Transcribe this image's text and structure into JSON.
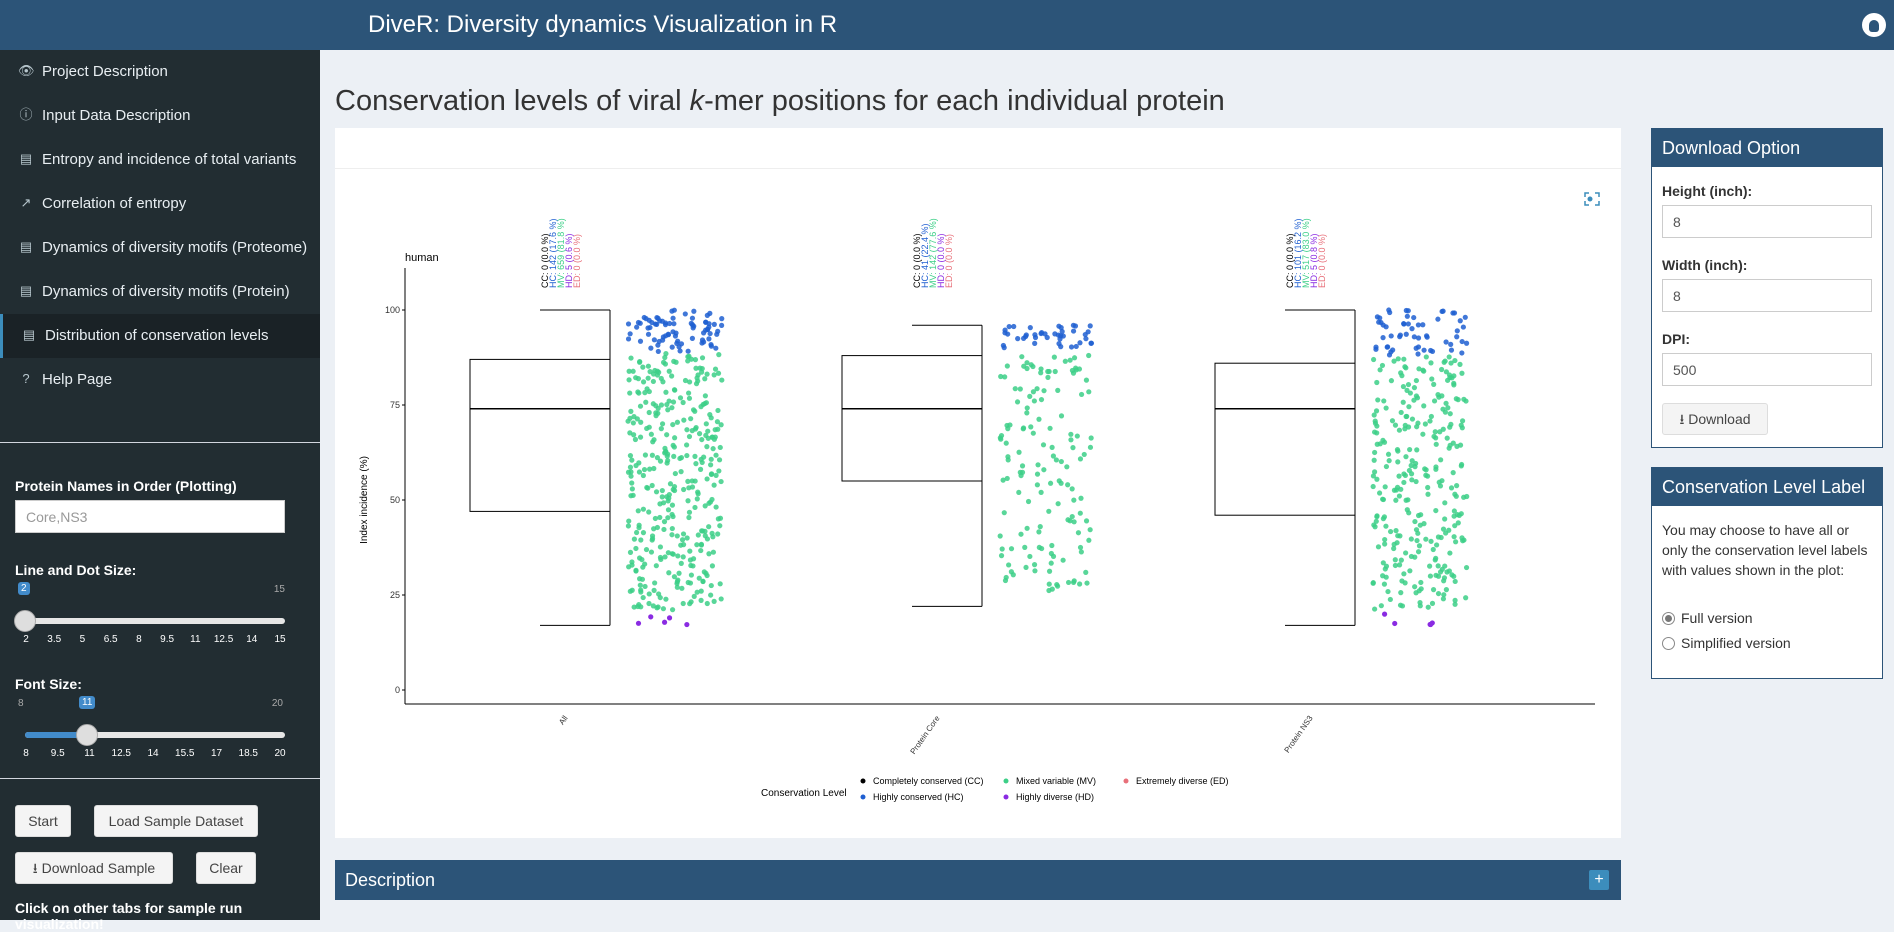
{
  "app": {
    "title": "DiveR: Diversity dynamics Visualization in R"
  },
  "sidebar": {
    "items": [
      {
        "label": "Project Description",
        "icon": "eye-icon"
      },
      {
        "label": "Input Data Description",
        "icon": "info-icon"
      },
      {
        "label": "Entropy and incidence of total variants",
        "icon": "bar-chart-icon"
      },
      {
        "label": "Correlation of entropy",
        "icon": "line-chart-icon"
      },
      {
        "label": "Dynamics of diversity motifs (Proteome)",
        "icon": "bar-chart-icon"
      },
      {
        "label": "Dynamics of diversity motifs (Protein)",
        "icon": "bar-chart-icon"
      },
      {
        "label": "Distribution of conservation levels",
        "icon": "bar-chart-icon",
        "active": true
      },
      {
        "label": "Help Page",
        "icon": "question-icon"
      }
    ],
    "protein_label": "Protein Names in Order (Plotting)",
    "protein_placeholder": "Core,NS3",
    "line_dot": {
      "label": "Line and Dot Size:",
      "value": "2",
      "min": "2",
      "max": "15",
      "ticks": [
        "2",
        "3.5",
        "5",
        "6.5",
        "8",
        "9.5",
        "11",
        "12.5",
        "14",
        "15"
      ]
    },
    "font_size": {
      "label": "Font Size:",
      "value": "11",
      "min": "8",
      "max": "20",
      "ticks": [
        "8",
        "9.5",
        "11",
        "12.5",
        "14",
        "15.5",
        "17",
        "18.5",
        "20"
      ]
    },
    "start_label": "Start",
    "load_label": "Load Sample Dataset",
    "download_sample_label": "Download Sample",
    "clear_label": "Clear",
    "note": "Click on other tabs for sample run visualization!"
  },
  "main": {
    "title_pre": "Conservation levels of viral ",
    "title_em": "k",
    "title_post": "-mer positions for each individual protein",
    "description_label": "Description",
    "plus": "+"
  },
  "chart_data": {
    "type": "box-jitter",
    "host_label": "human",
    "ylabel": "Index incidence (%)",
    "ylim": [
      0,
      100
    ],
    "yticks": [
      "0",
      "25",
      "50",
      "75",
      "100"
    ],
    "categories": [
      "All",
      "Protein Core",
      "Protein NS3"
    ],
    "boxes": [
      {
        "min": 17,
        "q1": 47,
        "median": 74,
        "q3": 87,
        "max": 100
      },
      {
        "min": 22,
        "q1": 55,
        "median": 74,
        "q3": 88,
        "max": 96
      },
      {
        "min": 17,
        "q1": 46,
        "median": 74,
        "q3": 86,
        "max": 100
      }
    ],
    "annotations": [
      [
        "CC: 0 (0.0 %)",
        "HC: 142 (17.6 %)",
        "MV: 659 (81.8 %)",
        "HD: 5 (0.6 %)",
        "ED: 0 (0.0 %)"
      ],
      [
        "CC: 0 (0.0 %)",
        "HC: 41 (22.4 %)",
        "MV: 142 (77.6 %)",
        "HD: 0 (0.0 %)",
        "ED: 0 (0.0 %)"
      ],
      [
        "CC: 0 (0.0 %)",
        "HC: 101 (16.2 %)",
        "MV: 517 (83.0 %)",
        "HD: 5 (0.8 %)",
        "ED: 0 (0.0 %)"
      ]
    ],
    "levels": [
      {
        "name": "Completely conserved (CC)",
        "color": "#000000"
      },
      {
        "name": "Highly conserved (HC)",
        "color": "#1f5fd1"
      },
      {
        "name": "Mixed variable (MV)",
        "color": "#3ccf87"
      },
      {
        "name": "Highly diverse (HD)",
        "color": "#8a2be2"
      },
      {
        "name": "Extremely diverse (ED)",
        "color": "#e8707a"
      }
    ],
    "legend_title": "Conservation Level",
    "legend_position": "bottom"
  },
  "download": {
    "header": "Download Option",
    "height_label": "Height (inch):",
    "height_value": "8",
    "width_label": "Width (inch):",
    "width_value": "8",
    "dpi_label": "DPI:",
    "dpi_value": "500",
    "button": "Download"
  },
  "labelbox": {
    "header": "Conservation Level Label",
    "text": "You may choose to have all or only the conservation level labels with values shown in the plot:",
    "full": "Full version",
    "simple": "Simplified version"
  }
}
